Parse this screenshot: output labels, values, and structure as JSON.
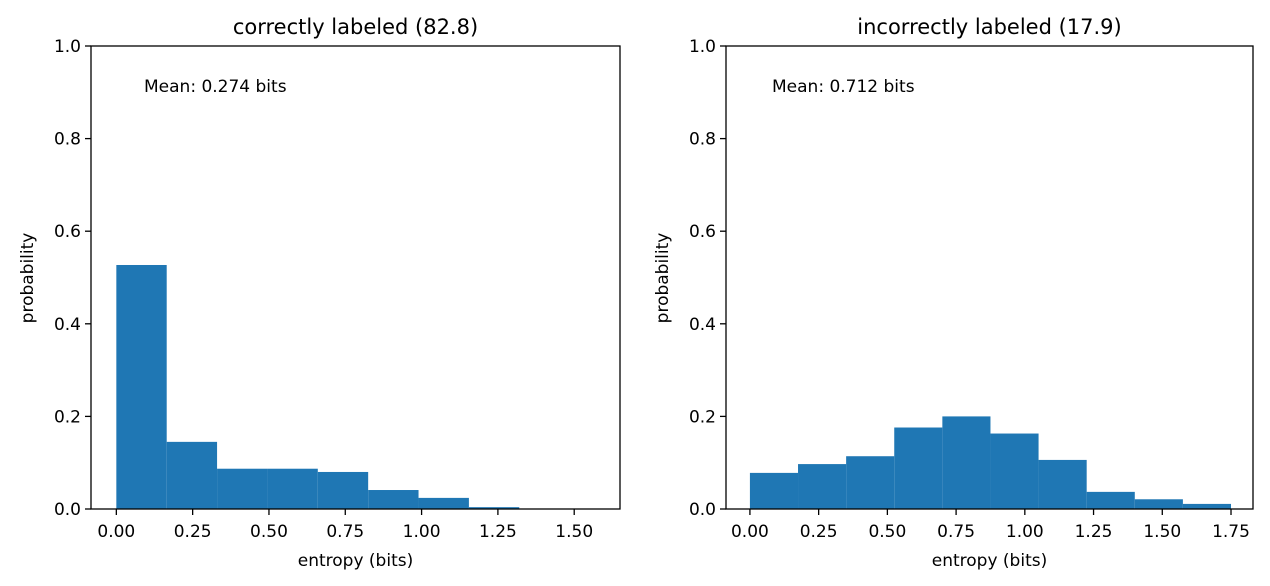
{
  "chart_data": [
    {
      "type": "bar",
      "title": "correctly labeled (82.8)",
      "xlabel": "entropy (bits)",
      "ylabel": "probability",
      "annotation": "Mean: 0.274 bits",
      "bar_color": "#1f77b4",
      "xlim": [
        -0.083,
        1.65
      ],
      "ylim": [
        0,
        1.0
      ],
      "xticks": [
        0.0,
        0.25,
        0.5,
        0.75,
        1.0,
        1.25,
        1.5
      ],
      "xtick_labels": [
        "0.00",
        "0.25",
        "0.50",
        "0.75",
        "1.00",
        "1.25",
        "1.50"
      ],
      "yticks": [
        0.0,
        0.2,
        0.4,
        0.6,
        0.8,
        1.0
      ],
      "ytick_labels": [
        "0.0",
        "0.2",
        "0.4",
        "0.6",
        "0.8",
        "1.0"
      ],
      "bin_edges": [
        0.0,
        0.165,
        0.33,
        0.495,
        0.66,
        0.825,
        0.99,
        1.155,
        1.32,
        1.485,
        1.65
      ],
      "values": [
        0.527,
        0.145,
        0.087,
        0.087,
        0.08,
        0.041,
        0.024,
        0.004,
        0.001,
        0.0
      ],
      "grid": false,
      "legend": "none"
    },
    {
      "type": "bar",
      "title": "incorrectly labeled (17.9)",
      "xlabel": "entropy (bits)",
      "ylabel": "probability",
      "annotation": "Mean: 0.712 bits",
      "bar_color": "#1f77b4",
      "xlim": [
        -0.087,
        1.83
      ],
      "ylim": [
        0,
        1.0
      ],
      "xticks": [
        0.0,
        0.25,
        0.5,
        0.75,
        1.0,
        1.25,
        1.5,
        1.75
      ],
      "xtick_labels": [
        "0.00",
        "0.25",
        "0.50",
        "0.75",
        "1.00",
        "1.25",
        "1.50",
        "1.75"
      ],
      "yticks": [
        0.0,
        0.2,
        0.4,
        0.6,
        0.8,
        1.0
      ],
      "ytick_labels": [
        "0.0",
        "0.2",
        "0.4",
        "0.6",
        "0.8",
        "1.0"
      ],
      "bin_edges": [
        0.0,
        0.175,
        0.35,
        0.525,
        0.7,
        0.875,
        1.05,
        1.225,
        1.4,
        1.575,
        1.75
      ],
      "values": [
        0.078,
        0.097,
        0.114,
        0.176,
        0.2,
        0.163,
        0.106,
        0.037,
        0.021,
        0.011
      ],
      "grid": false,
      "legend": "none"
    }
  ]
}
